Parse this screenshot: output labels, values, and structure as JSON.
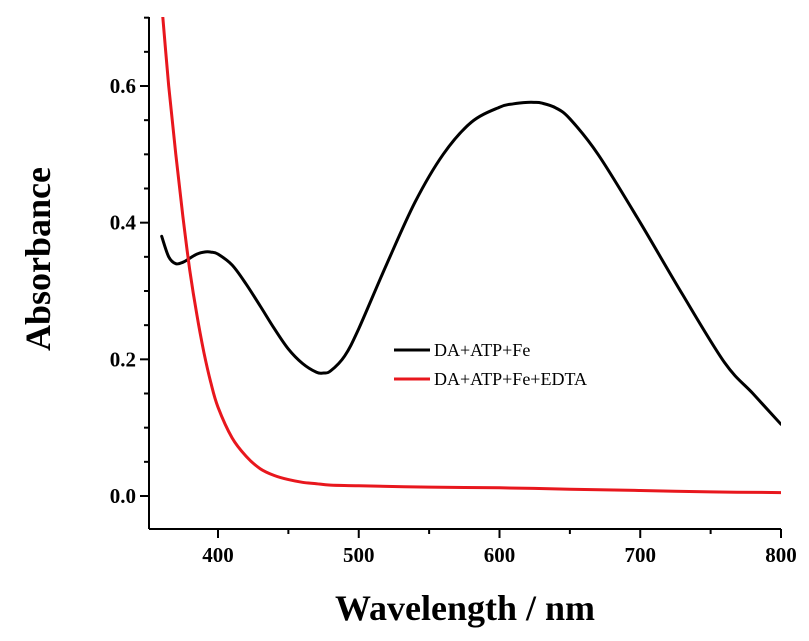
{
  "chart_data": {
    "type": "line",
    "title": "",
    "xlabel": "Wavelength / nm",
    "ylabel": "Absorbance",
    "xlim": [
      350,
      800
    ],
    "ylim": [
      -0.05,
      0.7
    ],
    "x_ticks": [
      400,
      500,
      600,
      700,
      800
    ],
    "x_tick_labels": [
      "400",
      "500",
      "600",
      "700",
      "800"
    ],
    "y_ticks": [
      0.0,
      0.2,
      0.4,
      0.6
    ],
    "y_tick_labels": [
      "0.0",
      "0.2",
      "0.4",
      "0.6"
    ],
    "grid": false,
    "legend_position": "center-right",
    "series": [
      {
        "name": "DA+ATP+Fe",
        "color": "#000000",
        "x": [
          360,
          365,
          370,
          375,
          380,
          385,
          390,
          395,
          400,
          410,
          420,
          430,
          440,
          450,
          460,
          470,
          475,
          480,
          490,
          500,
          520,
          540,
          560,
          580,
          600,
          610,
          620,
          625,
          630,
          640,
          650,
          670,
          700,
          730,
          760,
          780,
          800
        ],
        "y": [
          0.38,
          0.35,
          0.34,
          0.342,
          0.348,
          0.354,
          0.357,
          0.357,
          0.354,
          0.338,
          0.31,
          0.278,
          0.245,
          0.215,
          0.194,
          0.181,
          0.18,
          0.183,
          0.205,
          0.245,
          0.34,
          0.43,
          0.5,
          0.547,
          0.569,
          0.574,
          0.576,
          0.576,
          0.575,
          0.568,
          0.552,
          0.5,
          0.4,
          0.295,
          0.195,
          0.15,
          0.105
        ]
      },
      {
        "name": "DA+ATP+Fe+EDTA",
        "color": "#e8171d",
        "x": [
          360,
          365,
          370,
          375,
          380,
          385,
          390,
          395,
          400,
          410,
          420,
          430,
          440,
          450,
          460,
          470,
          480,
          500,
          550,
          600,
          650,
          700,
          750,
          800
        ],
        "y": [
          0.72,
          0.6,
          0.5,
          0.41,
          0.33,
          0.265,
          0.21,
          0.165,
          0.13,
          0.085,
          0.058,
          0.04,
          0.03,
          0.024,
          0.02,
          0.018,
          0.016,
          0.015,
          0.013,
          0.012,
          0.01,
          0.008,
          0.006,
          0.005
        ]
      }
    ]
  }
}
